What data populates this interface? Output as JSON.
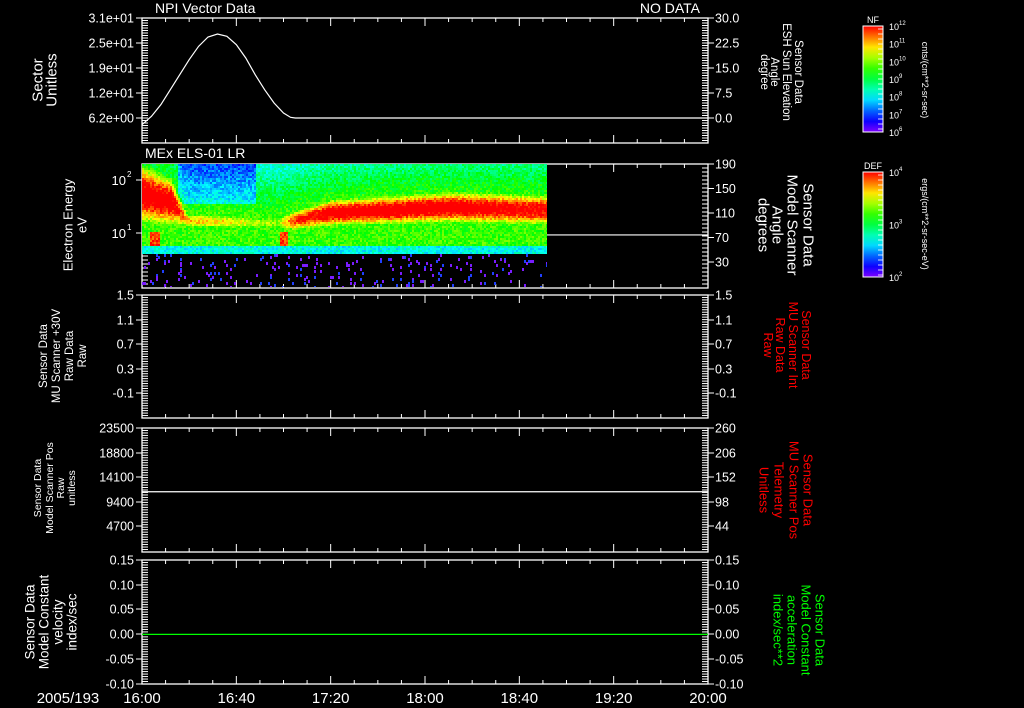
{
  "colors": {
    "axis": "#ffffff",
    "red_label": "#ff0000",
    "green_label": "#00ff00",
    "zero_line": "#00ff00"
  },
  "x_axis": {
    "date": "2005/193",
    "ticks": [
      "16:00",
      "16:40",
      "17:20",
      "18:00",
      "18:40",
      "19:20",
      "20:00"
    ],
    "range_minutes": [
      0,
      240
    ]
  },
  "chart_data": [
    {
      "type": "line",
      "title": "NPI Vector Data",
      "status": "NO DATA",
      "ylabel_left": [
        "Sector",
        "Unitless"
      ],
      "ylabel_right": [
        "Sensor Data",
        "ESH Sun Elevation",
        "Angle",
        "degree"
      ],
      "left_ticks": [
        "3.1e+01",
        "2.5e+01",
        "1.9e+01",
        "1.2e+01",
        "6.2e+00"
      ],
      "right_ticks": [
        "30.0",
        "22.5",
        "15.0",
        "7.5",
        "0.0"
      ],
      "ylim_right": [
        -7.5,
        30
      ],
      "series": [
        {
          "name": "ESH Sun Elevation Angle",
          "x_minutes": [
            0,
            4,
            8,
            12,
            16,
            20,
            24,
            28,
            32,
            36,
            40,
            44,
            48,
            52,
            56,
            60,
            63,
            65,
            240
          ],
          "values": [
            -2,
            0.5,
            4,
            8.5,
            13,
            17.5,
            21.5,
            24.3,
            25.2,
            24.5,
            22,
            18,
            13,
            8.5,
            4.5,
            1.5,
            0.2,
            0,
            0
          ]
        }
      ]
    },
    {
      "type": "heatmap",
      "title": "MEx ELS-01 LR",
      "ylabel_left": [
        "Electron Energy",
        "eV"
      ],
      "ylabel_right": [
        "Sensor Data",
        "Model Scanner",
        "Angle",
        "degrees"
      ],
      "left_ticks": [
        {
          "label": "10",
          "exp": "2"
        },
        {
          "label": "10",
          "exp": "1"
        }
      ],
      "right_ticks": [
        "190",
        "150",
        "110",
        "70",
        "30"
      ],
      "energy_range_eV": [
        0.96,
        210
      ],
      "data_end_minutes": 172,
      "low_energy_cutoff_log10": 0.64,
      "band_keypoints": [
        {
          "t": 0,
          "center": 1.75,
          "halfwidth": 0.55,
          "peak": 1.0
        },
        {
          "t": 12,
          "center": 1.6,
          "halfwidth": 0.45,
          "peak": 1.0
        },
        {
          "t": 19,
          "center": 1.25,
          "halfwidth": 0.15,
          "peak": 0.78
        },
        {
          "t": 40,
          "center": 1.22,
          "halfwidth": 0.15,
          "peak": 0.72
        },
        {
          "t": 57,
          "center": 1.2,
          "halfwidth": 0.15,
          "peak": 0.62
        },
        {
          "t": 64,
          "center": 1.25,
          "halfwidth": 0.2,
          "peak": 0.9
        },
        {
          "t": 80,
          "center": 1.4,
          "halfwidth": 0.25,
          "peak": 1.0
        },
        {
          "t": 130,
          "center": 1.5,
          "halfwidth": 0.3,
          "peak": 1.0
        },
        {
          "t": 172,
          "center": 1.45,
          "halfwidth": 0.3,
          "peak": 0.95
        }
      ],
      "spikes_minutes": [
        5,
        60
      ],
      "overlay_line": {
        "name": "Model Scanner Angle",
        "value_degrees": 87,
        "ylim": [
          10,
          190
        ]
      },
      "colorbar": {
        "label": "DEF",
        "ticks": [
          {
            "label": "10",
            "exp": "4"
          },
          {
            "label": "10",
            "exp": "3"
          },
          {
            "label": "10",
            "exp": "2"
          }
        ],
        "units": "ergs/(cm**2-sr-sec-eV)"
      }
    },
    {
      "type": "line",
      "ylabel_left": [
        "Sensor Data",
        "MU Scanner +30V",
        "Raw Data",
        "Raw"
      ],
      "ylabel_right": [
        "Sensor Data",
        "MU Scanner Int",
        "Raw Data",
        "Raw"
      ],
      "left_ticks": [
        "1.5",
        "1.1",
        "0.7",
        "0.3",
        "-0.1"
      ],
      "right_ticks": [
        "1.5",
        "1.1",
        "0.7",
        "0.3",
        "-0.1"
      ],
      "series": []
    },
    {
      "type": "line",
      "ylabel_left": [
        "Sensor Data",
        "Model Scanner Pos",
        "Raw",
        "unitless"
      ],
      "ylabel_right": [
        "Sensor Data",
        "MU Scanner Pos",
        "Telemetry",
        "Unitless"
      ],
      "left_ticks": [
        "23500",
        "18800",
        "14100",
        "9400",
        "4700"
      ],
      "right_ticks": [
        "260",
        "206",
        "152",
        "98",
        "44"
      ],
      "ylim_left": [
        0,
        23500
      ],
      "series": [
        {
          "name": "Model Scanner Pos",
          "value": 11420
        }
      ]
    },
    {
      "type": "line",
      "ylabel_left": [
        "Sensor Data",
        "Model Constant",
        "velocity",
        "index/sec"
      ],
      "ylabel_right": [
        "Sensor Data",
        "Model Constant",
        "acceleration",
        "index/sec**2"
      ],
      "left_ticks": [
        "0.15",
        "0.10",
        "0.05",
        "0.00",
        "-0.05",
        "-0.10"
      ],
      "right_ticks": [
        "0.15",
        "0.10",
        "0.05",
        "0.00",
        "-0.05",
        "-0.10"
      ],
      "ylim": [
        -0.1,
        0.15
      ],
      "series": [
        {
          "name": "Model Constant velocity",
          "value": 0.0
        }
      ]
    }
  ],
  "colorbar_nf": {
    "label": "NF",
    "ticks": [
      {
        "label": "10",
        "exp": "12"
      },
      {
        "label": "10",
        "exp": "11"
      },
      {
        "label": "10",
        "exp": "10"
      },
      {
        "label": "10",
        "exp": "9"
      },
      {
        "label": "10",
        "exp": "8"
      },
      {
        "label": "10",
        "exp": "7"
      },
      {
        "label": "10",
        "exp": "6"
      }
    ],
    "units": "cnts/(cm**2-sr-sec)"
  }
}
